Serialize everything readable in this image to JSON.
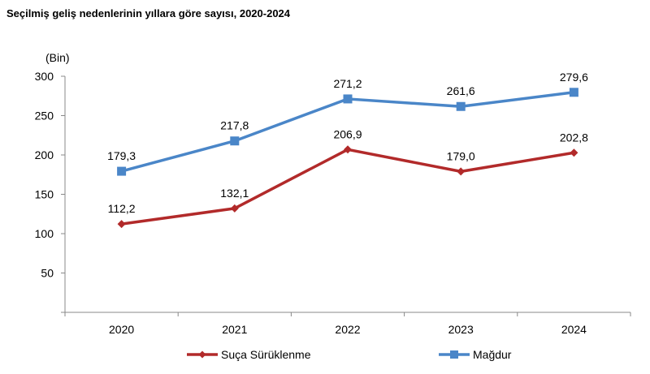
{
  "title": "Seçilmiş geliş nedenlerinin yıllara göre sayısı, 2020-2024",
  "chart_data": {
    "type": "line",
    "title": "Seçilmiş geliş nedenlerinin yıllara göre sayısı, 2020-2024",
    "unit_label": "(Bin)",
    "categories": [
      "2020",
      "2021",
      "2022",
      "2023",
      "2024"
    ],
    "y_ticks": [
      "50",
      "100",
      "150",
      "200",
      "250",
      "300"
    ],
    "ylim": [
      0,
      300
    ],
    "grid": false,
    "legend_position": "bottom",
    "series": [
      {
        "name": "Suça Sürüklenme",
        "values": [
          112.2,
          132.1,
          206.9,
          179.0,
          202.8
        ],
        "labels": [
          "112,2",
          "132,1",
          "206,9",
          "179,0",
          "202,8"
        ],
        "color": "#b22a2a",
        "marker": "diamond"
      },
      {
        "name": "Mağdur",
        "values": [
          179.3,
          217.8,
          271.2,
          261.6,
          279.6
        ],
        "labels": [
          "179,3",
          "217,8",
          "271,2",
          "261,6",
          "279,6"
        ],
        "color": "#4a86c8",
        "marker": "square"
      }
    ]
  }
}
